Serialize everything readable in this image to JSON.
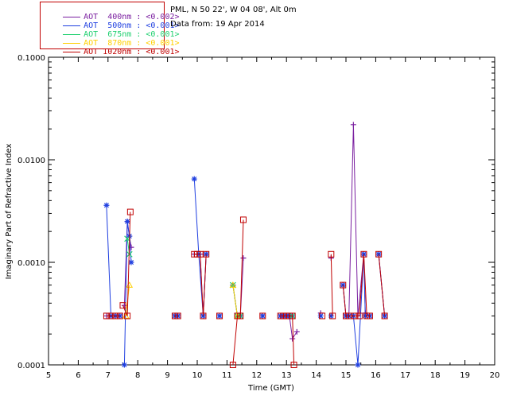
{
  "chart_data": {
    "type": "line",
    "title": "",
    "info_lines": [
      "PML, N 50 22', W 04 08', Alt 0m",
      "Data from: 19 Apr 2014"
    ],
    "xlabel": "Time (GMT)",
    "ylabel": "Imaginary Part of Refractive Index",
    "xlim": [
      5,
      20
    ],
    "ylim": [
      0.0001,
      0.1
    ],
    "yscale": "log",
    "x_ticks": [
      5,
      6,
      7,
      8,
      9,
      10,
      11,
      12,
      13,
      14,
      15,
      16,
      17,
      18,
      19,
      20
    ],
    "y_ticks": [
      0.0001,
      0.001,
      0.01,
      0.1
    ],
    "y_tick_labels": [
      "0.0001",
      "0.0010",
      "0.0100",
      "0.1000"
    ],
    "legend": [
      {
        "label": "AOT  400nm : <0.002>",
        "color": "#7a1fa0"
      },
      {
        "label": "AOT  500nm : <0.001>",
        "color": "#1f3fe0"
      },
      {
        "label": "AOT  675nm : <0.001>",
        "color": "#20d070"
      },
      {
        "label": "AOT  870nm : <0.001>",
        "color": "#ffd000"
      },
      {
        "label": "AOT 1020nm : <0.001>",
        "color": "#c00000"
      }
    ],
    "series": [
      {
        "name": "AOT 400nm",
        "color": "#7a1fa0",
        "marker": "plus",
        "segments": [
          [
            [
              6.95,
              0.0003
            ],
            [
              7.1,
              0.0003
            ],
            [
              7.25,
              0.0003
            ],
            [
              7.4,
              0.0003
            ]
          ],
          [
            [
              7.55,
              0.00038
            ],
            [
              7.65,
              0.0025
            ],
            [
              7.72,
              0.0018
            ],
            [
              7.78,
              0.0014
            ]
          ],
          [
            [
              9.25,
              0.0003
            ],
            [
              9.35,
              0.0003
            ]
          ],
          [
            [
              9.9,
              0.0012
            ],
            [
              10.0,
              0.0012
            ],
            [
              10.1,
              0.0012
            ],
            [
              10.2,
              0.0003
            ],
            [
              10.3,
              0.0012
            ]
          ],
          [
            [
              10.75,
              0.0003
            ]
          ],
          [
            [
              11.2,
              0.0006
            ],
            [
              11.35,
              0.0003
            ],
            [
              11.45,
              0.0003
            ],
            [
              11.55,
              0.0011
            ]
          ],
          [
            [
              12.2,
              0.0003
            ]
          ],
          [
            [
              12.8,
              0.0003
            ],
            [
              12.9,
              0.0003
            ],
            [
              13.0,
              0.0003
            ],
            [
              13.1,
              0.0003
            ],
            [
              13.2,
              0.00018
            ],
            [
              13.35,
              0.00021
            ]
          ],
          [
            [
              14.15,
              0.00032
            ]
          ],
          [
            [
              14.5,
              0.0011
            ]
          ],
          [
            [
              14.9,
              0.0006
            ],
            [
              15.0,
              0.0003
            ],
            [
              15.1,
              0.0003
            ],
            [
              15.25,
              0.022
            ],
            [
              15.4,
              0.0003
            ],
            [
              15.6,
              0.0012
            ],
            [
              15.65,
              0.00032
            ],
            [
              15.8,
              0.0003
            ]
          ],
          [
            [
              16.1,
              0.0012
            ],
            [
              16.3,
              0.0003
            ]
          ]
        ]
      },
      {
        "name": "AOT 500nm",
        "color": "#1f3fe0",
        "marker": "star",
        "segments": [
          [
            [
              6.95,
              0.0036
            ],
            [
              7.1,
              0.0003
            ],
            [
              7.25,
              0.0003
            ],
            [
              7.4,
              0.0003
            ]
          ],
          [
            [
              7.55,
              0.0001
            ],
            [
              7.65,
              0.0025
            ],
            [
              7.72,
              0.0018
            ],
            [
              7.78,
              0.001
            ]
          ],
          [
            [
              9.25,
              0.0003
            ],
            [
              9.35,
              0.0003
            ]
          ],
          [
            [
              9.9,
              0.0065
            ],
            [
              10.05,
              0.0012
            ],
            [
              10.2,
              0.0003
            ],
            [
              10.3,
              0.0012
            ]
          ],
          [
            [
              10.75,
              0.0003
            ]
          ],
          [
            [
              11.2,
              0.0006
            ],
            [
              11.35,
              0.0003
            ],
            [
              11.45,
              0.0003
            ]
          ],
          [
            [
              12.2,
              0.0003
            ]
          ],
          [
            [
              12.8,
              0.0003
            ],
            [
              12.9,
              0.0003
            ],
            [
              13.0,
              0.0003
            ],
            [
              13.1,
              0.0003
            ],
            [
              13.2,
              0.0003
            ]
          ],
          [
            [
              14.15,
              0.0003
            ]
          ],
          [
            [
              14.5,
              0.0003
            ]
          ],
          [
            [
              14.9,
              0.0006
            ],
            [
              15.0,
              0.0003
            ],
            [
              15.1,
              0.0003
            ],
            [
              15.25,
              0.0003
            ],
            [
              15.4,
              0.0001
            ],
            [
              15.6,
              0.0012
            ],
            [
              15.65,
              0.0003
            ],
            [
              15.8,
              0.0003
            ]
          ],
          [
            [
              16.1,
              0.0012
            ],
            [
              16.3,
              0.0003
            ]
          ]
        ]
      },
      {
        "name": "AOT 675nm",
        "color": "#20d070",
        "marker": "x",
        "segments": [
          [
            [
              7.65,
              0.0017
            ],
            [
              7.72,
              0.0012
            ]
          ],
          [
            [
              11.2,
              0.0006
            ],
            [
              11.35,
              0.0003
            ],
            [
              11.45,
              0.0003
            ]
          ],
          [
            [
              13.2,
              0.0003
            ]
          ]
        ]
      },
      {
        "name": "AOT 870nm",
        "color": "#ffd000",
        "marker": "triangle",
        "segments": [
          [
            [
              7.6,
              0.0003
            ],
            [
              7.72,
              0.0006
            ]
          ],
          [
            [
              11.2,
              0.0006
            ],
            [
              11.35,
              0.0003
            ]
          ]
        ]
      },
      {
        "name": "AOT 1020nm",
        "color": "#c00000",
        "marker": "square",
        "segments": [
          [
            [
              6.95,
              0.0003
            ],
            [
              7.1,
              0.0003
            ],
            [
              7.25,
              0.0003
            ],
            [
              7.4,
              0.0003
            ]
          ],
          [
            [
              7.5,
              0.00038
            ],
            [
              7.65,
              0.0003
            ],
            [
              7.75,
              0.0031
            ]
          ],
          [
            [
              9.25,
              0.0003
            ],
            [
              9.35,
              0.0003
            ]
          ],
          [
            [
              9.9,
              0.0012
            ],
            [
              10.0,
              0.0012
            ],
            [
              10.1,
              0.0012
            ],
            [
              10.2,
              0.0003
            ],
            [
              10.3,
              0.0012
            ]
          ],
          [
            [
              10.75,
              0.0003
            ]
          ],
          [
            [
              11.2,
              0.0001
            ],
            [
              11.35,
              0.0003
            ],
            [
              11.45,
              0.0003
            ],
            [
              11.55,
              0.0026
            ]
          ],
          [
            [
              12.2,
              0.0003
            ]
          ],
          [
            [
              12.8,
              0.0003
            ],
            [
              12.9,
              0.0003
            ],
            [
              13.0,
              0.0003
            ],
            [
              13.1,
              0.0003
            ],
            [
              13.2,
              0.0003
            ],
            [
              13.25,
              0.0001
            ]
          ],
          [
            [
              14.2,
              0.0003
            ]
          ],
          [
            [
              14.5,
              0.0012
            ],
            [
              14.55,
              0.0003
            ]
          ],
          [
            [
              14.9,
              0.0006
            ],
            [
              15.0,
              0.0003
            ],
            [
              15.1,
              0.0003
            ],
            [
              15.3,
              0.0003
            ],
            [
              15.45,
              0.0003
            ],
            [
              15.6,
              0.0012
            ],
            [
              15.7,
              0.0003
            ],
            [
              15.8,
              0.0003
            ]
          ],
          [
            [
              16.1,
              0.0012
            ],
            [
              16.3,
              0.0003
            ]
          ]
        ]
      }
    ]
  }
}
